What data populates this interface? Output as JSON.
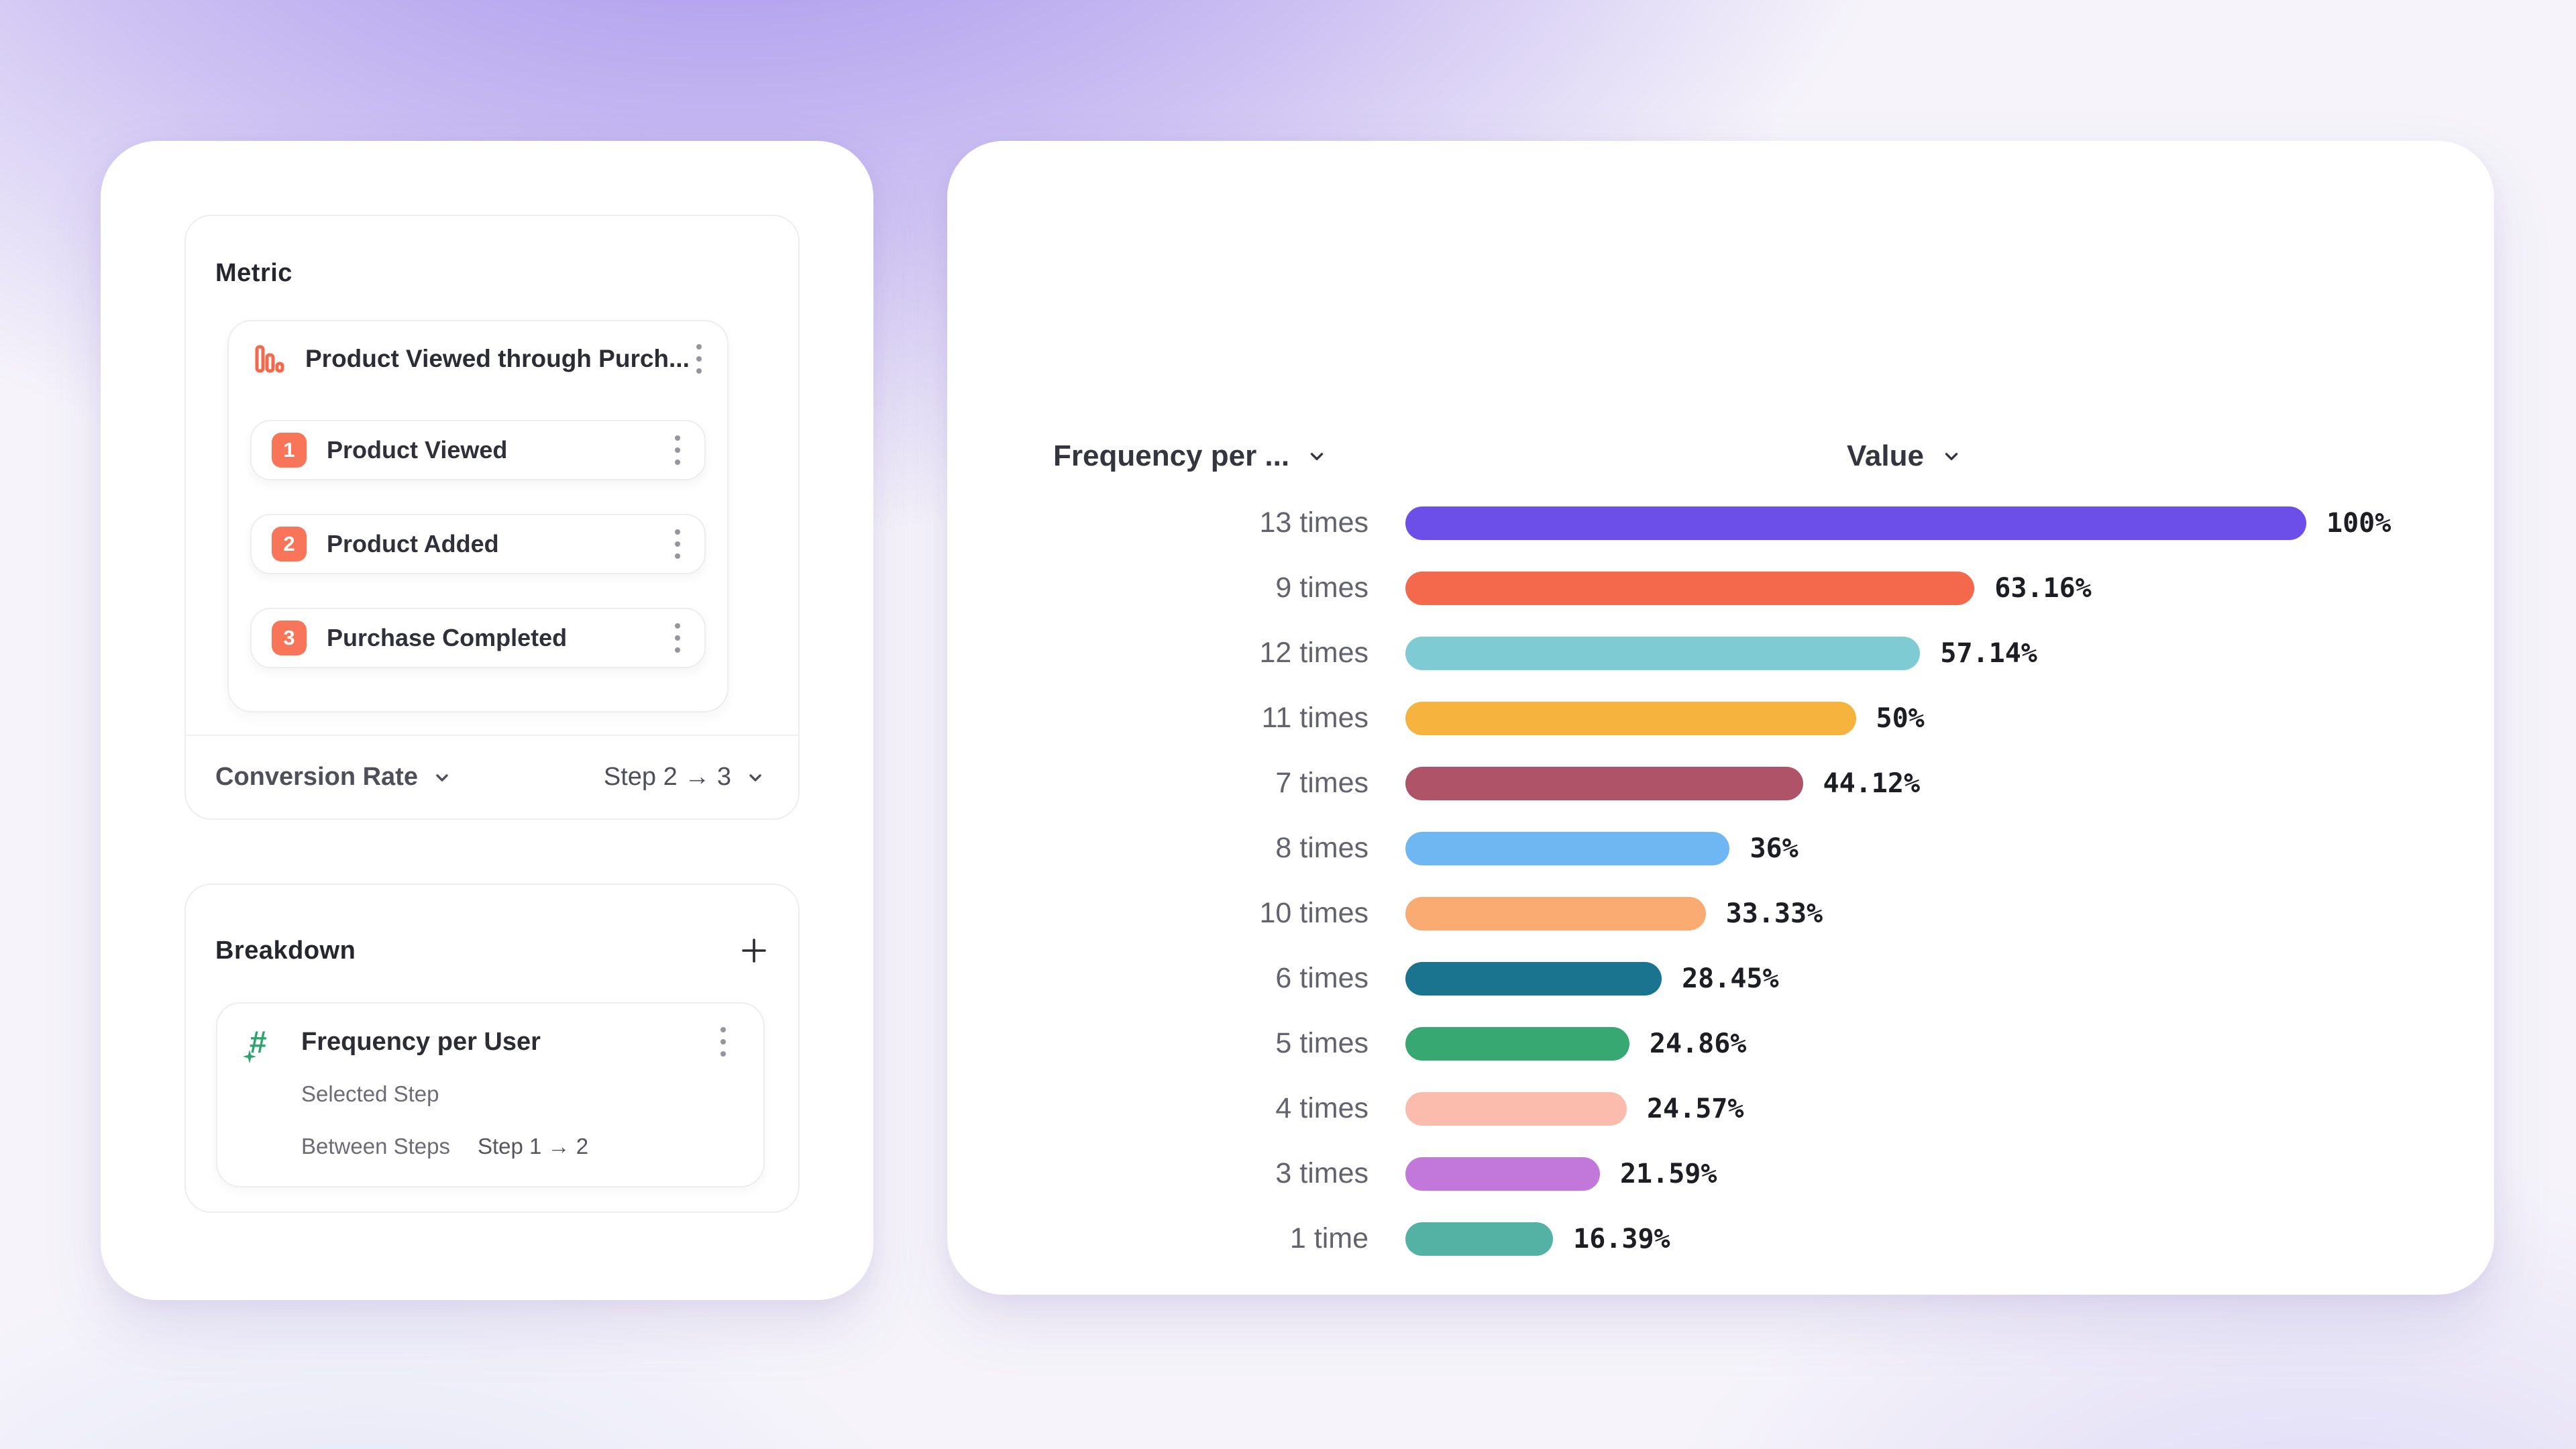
{
  "page": {
    "background_top_color": "#a48eeb",
    "background_base_color": "#f6f4fa",
    "accent_coral": "#f8755a",
    "accent_green": "#2ea46d"
  },
  "metric_panel": {
    "title": "Metric",
    "funnel": {
      "title": "Product Viewed through Purch...",
      "icon": "funnel-bars-icon",
      "steps": [
        {
          "number": "1",
          "label": "Product Viewed"
        },
        {
          "number": "2",
          "label": "Product Added"
        },
        {
          "number": "3",
          "label": "Purchase Completed"
        }
      ]
    },
    "footer": {
      "left_label": "Conversion Rate",
      "right_label": "Step 2 → 3"
    }
  },
  "breakdown_panel": {
    "title": "Breakdown",
    "add_button": "plus-icon",
    "item": {
      "title": "Frequency per User",
      "icon": "hash-star-icon",
      "rows": [
        {
          "label": "Selected Step",
          "value": ""
        },
        {
          "label": "Between Steps",
          "value": "Step 1 → 2"
        }
      ]
    }
  },
  "chart_data": {
    "type": "bar",
    "orientation": "horizontal",
    "headers": {
      "left": "Frequency per ...",
      "right": "Value"
    },
    "categories": [
      "13 times",
      "9 times",
      "12 times",
      "11 times",
      "7 times",
      "8 times",
      "10 times",
      "6 times",
      "5 times",
      "4 times",
      "3 times",
      "1 time"
    ],
    "values": [
      100,
      63.16,
      57.14,
      50,
      44.12,
      36,
      33.33,
      28.45,
      24.86,
      24.57,
      21.59,
      16.39
    ],
    "value_labels": [
      "100%",
      "63.16%",
      "57.14%",
      "50%",
      "44.12%",
      "36%",
      "33.33%",
      "28.45%",
      "24.86%",
      "24.57%",
      "21.59%",
      "16.39%"
    ],
    "colors": [
      "#6B4FE8",
      "#F4684B",
      "#7ECBD3",
      "#F6B33D",
      "#AF5368",
      "#6FB7F3",
      "#F9AB72",
      "#1A7490",
      "#38A873",
      "#FBBCAD",
      "#C277DB",
      "#54B2A4"
    ],
    "xlim": [
      0,
      100
    ],
    "grid": false,
    "legend": "none"
  }
}
